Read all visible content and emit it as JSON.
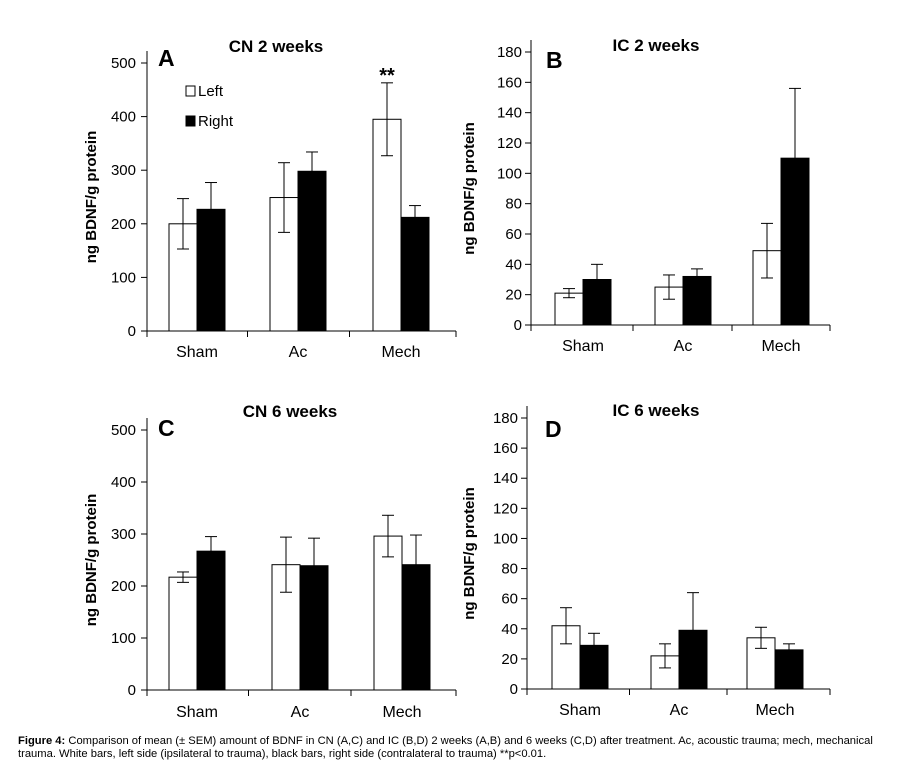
{
  "chart_data": [
    {
      "type": "bar",
      "panel": "A",
      "title": "CN 2 weeks",
      "ylabel": "ng BDNF/g protein",
      "xlabel": "",
      "ylim": [
        0,
        500
      ],
      "yticks": [
        0,
        100,
        200,
        300,
        400,
        500
      ],
      "categories": [
        "Sham",
        "Ac",
        "Mech"
      ],
      "series": [
        {
          "name": "Left",
          "color": "#ffffff",
          "values": [
            200,
            249,
            395
          ],
          "errors": [
            47,
            65,
            68
          ]
        },
        {
          "name": "Right",
          "color": "#000000",
          "values": [
            227,
            298,
            212
          ],
          "errors": [
            50,
            36,
            22
          ]
        }
      ],
      "legend": {
        "placement": "top-left",
        "items": [
          "Left",
          "Right"
        ]
      },
      "annotations": [
        {
          "text": "**",
          "category": "Mech"
        }
      ]
    },
    {
      "type": "bar",
      "panel": "B",
      "title": "IC 2 weeks",
      "ylabel": "ng BDNF/g protein",
      "xlabel": "",
      "ylim": [
        0,
        180
      ],
      "yticks": [
        0,
        20,
        40,
        60,
        80,
        100,
        120,
        140,
        160,
        180
      ],
      "categories": [
        "Sham",
        "Ac",
        "Mech"
      ],
      "series": [
        {
          "name": "Left",
          "color": "#ffffff",
          "values": [
            21,
            25,
            49
          ],
          "errors": [
            3,
            8,
            18
          ]
        },
        {
          "name": "Right",
          "color": "#000000",
          "values": [
            30,
            32,
            110
          ],
          "errors": [
            10,
            5,
            46
          ]
        }
      ]
    },
    {
      "type": "bar",
      "panel": "C",
      "title": "CN 6 weeks",
      "ylabel": "ng BDNF/g protein",
      "xlabel": "",
      "ylim": [
        0,
        500
      ],
      "yticks": [
        0,
        100,
        200,
        300,
        400,
        500
      ],
      "categories": [
        "Sham",
        "Ac",
        "Mech"
      ],
      "series": [
        {
          "name": "Left",
          "color": "#ffffff",
          "values": [
            217,
            241,
            296
          ],
          "errors": [
            10,
            53,
            40
          ]
        },
        {
          "name": "Right",
          "color": "#000000",
          "values": [
            267,
            239,
            241
          ],
          "errors": [
            28,
            53,
            57
          ]
        }
      ]
    },
    {
      "type": "bar",
      "panel": "D",
      "title": "IC 6 weeks",
      "ylabel": "ng BDNF/g protein",
      "xlabel": "",
      "ylim": [
        0,
        180
      ],
      "yticks": [
        0,
        20,
        40,
        60,
        80,
        100,
        120,
        140,
        160,
        180
      ],
      "categories": [
        "Sham",
        "Ac",
        "Mech"
      ],
      "series": [
        {
          "name": "Left",
          "color": "#ffffff",
          "values": [
            42,
            22,
            34
          ],
          "errors": [
            12,
            8,
            7
          ]
        },
        {
          "name": "Right",
          "color": "#000000",
          "values": [
            29,
            39,
            26
          ],
          "errors": [
            8,
            25,
            4
          ]
        }
      ]
    }
  ],
  "caption": {
    "label": "Figure 4:",
    "text": " Comparison of mean (± SEM) amount of BDNF in CN (A,C) and IC (B,D) 2 weeks (A,B) and 6 weeks (C,D) after treatment. Ac, acoustic trauma; mech, mechanical trauma. White bars, left side (ipsilateral to trauma), black bars, right side (contralateral to trauma) **p<0.01."
  }
}
